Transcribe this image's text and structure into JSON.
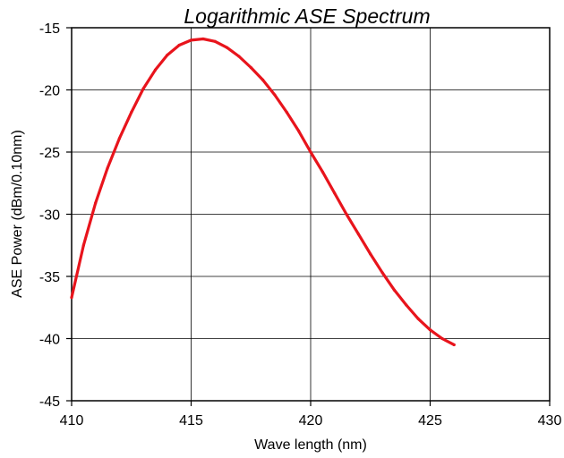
{
  "chart_data": {
    "type": "line",
    "title": "Logarithmic ASE Spectrum",
    "xlabel": "Wave length (nm)",
    "ylabel": "ASE Power (dBm/0.10nm)",
    "xlim": [
      410,
      430
    ],
    "ylim": [
      -45,
      -15
    ],
    "xticks": [
      410,
      415,
      420,
      425,
      430
    ],
    "xtick_labels": [
      "410",
      "415",
      "420",
      "425",
      "430"
    ],
    "yticks": [
      -45,
      -40,
      -35,
      -30,
      -25,
      -20,
      -15
    ],
    "ytick_labels": [
      "-45",
      "-40",
      "-35",
      "-30",
      "-25",
      "-20",
      "-15"
    ],
    "grid": true,
    "legend": "none",
    "series": [
      {
        "color": "#e8141c",
        "x": [
          410.0,
          410.5,
          411.0,
          411.5,
          412.0,
          412.5,
          413.0,
          413.5,
          414.0,
          414.5,
          415.0,
          415.5,
          416.0,
          416.5,
          417.0,
          417.5,
          418.0,
          418.5,
          419.0,
          419.5,
          420.0,
          420.5,
          421.0,
          421.5,
          422.0,
          422.5,
          423.0,
          423.5,
          424.0,
          424.5,
          425.0,
          425.5,
          426.0
        ],
        "y": [
          -36.7,
          -32.5,
          -29.1,
          -26.3,
          -23.9,
          -21.8,
          -19.9,
          -18.4,
          -17.2,
          -16.4,
          -16.0,
          -15.9,
          -16.1,
          -16.6,
          -17.3,
          -18.2,
          -19.2,
          -20.4,
          -21.8,
          -23.3,
          -25.0,
          -26.6,
          -28.3,
          -30.0,
          -31.6,
          -33.2,
          -34.7,
          -36.1,
          -37.3,
          -38.4,
          -39.3,
          -40.0,
          -40.5
        ]
      }
    ]
  }
}
